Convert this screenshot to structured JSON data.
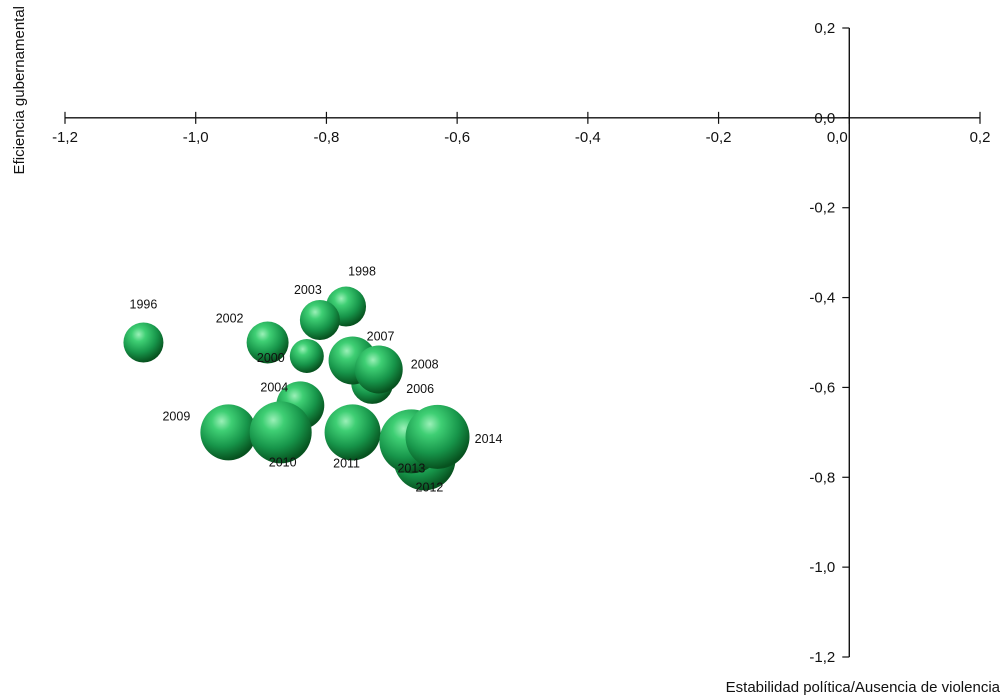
{
  "chart_data": {
    "type": "scatter",
    "title": "",
    "xlabel": "Estabilidad política/Ausencia de violencia",
    "ylabel": "Eficiencia gubernamental",
    "xlim": [
      -1.2,
      0.2
    ],
    "ylim": [
      -1.2,
      0.2
    ],
    "x_ticks": [
      "-1,2",
      "-1,0",
      "-0,8",
      "-0,6",
      "-0,4",
      "-0,2",
      "0,0",
      "0,2"
    ],
    "x_tick_values": [
      -1.2,
      -1.0,
      -0.8,
      -0.6,
      -0.4,
      -0.2,
      0.0,
      0.2
    ],
    "y_ticks": [
      "0,2",
      "0,0",
      "-0,2",
      "-0,4",
      "-0,6",
      "-0,8",
      "-1,0",
      "-1,2"
    ],
    "y_tick_values": [
      0.2,
      0.0,
      -0.2,
      -0.4,
      -0.6,
      -0.8,
      -1.0,
      -1.2
    ],
    "bubble_color": "#1f9a4a",
    "points": [
      {
        "label": "1996",
        "x": -1.08,
        "y": -0.5,
        "size": 1.0
      },
      {
        "label": "1998",
        "x": -0.77,
        "y": -0.42,
        "size": 1.0
      },
      {
        "label": "2000",
        "x": -0.83,
        "y": -0.53,
        "size": 0.85
      },
      {
        "label": "2002",
        "x": -0.89,
        "y": -0.5,
        "size": 1.05
      },
      {
        "label": "2003",
        "x": -0.81,
        "y": -0.45,
        "size": 1.0
      },
      {
        "label": "2004",
        "x": -0.84,
        "y": -0.64,
        "size": 1.2
      },
      {
        "label": "2006",
        "x": -0.73,
        "y": -0.59,
        "size": 1.05
      },
      {
        "label": "2007",
        "x": -0.76,
        "y": -0.54,
        "size": 1.2
      },
      {
        "label": "2008",
        "x": -0.72,
        "y": -0.56,
        "size": 1.2
      },
      {
        "label": "2009",
        "x": -0.95,
        "y": -0.7,
        "size": 1.4
      },
      {
        "label": "2010",
        "x": -0.87,
        "y": -0.7,
        "size": 1.55
      },
      {
        "label": "2011",
        "x": -0.76,
        "y": -0.7,
        "size": 1.4
      },
      {
        "label": "2012",
        "x": -0.65,
        "y": -0.76,
        "size": 1.55
      },
      {
        "label": "2013",
        "x": -0.67,
        "y": -0.72,
        "size": 1.6
      },
      {
        "label": "2014",
        "x": -0.63,
        "y": -0.71,
        "size": 1.6
      }
    ]
  }
}
